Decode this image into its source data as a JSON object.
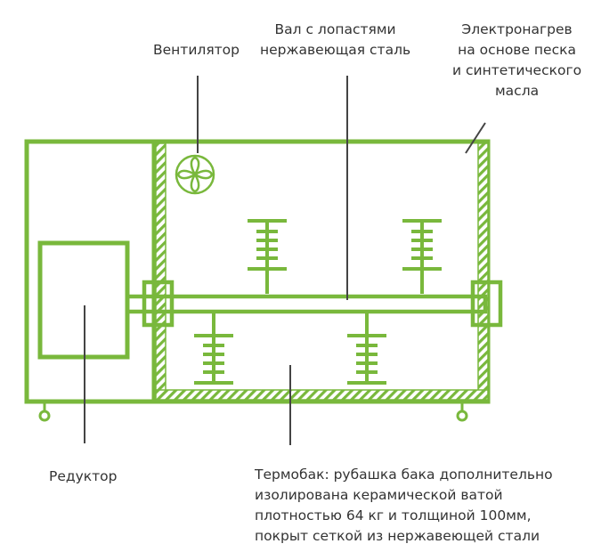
{
  "colors": {
    "frame": "#79b83c",
    "leader": "#444444",
    "text": "#333333",
    "background": "#ffffff"
  },
  "labels": {
    "fan": "Вентилятор",
    "shaft": [
      "Вал с лопастями",
      "нержавеющая сталь"
    ],
    "heater": [
      "Электронагрев",
      "на основе песка",
      "и синтетического",
      "масла"
    ],
    "reducer": "Редуктор",
    "tank": [
      "Термобак: рубашка бака дополнительно",
      "изолирована керамической ватой",
      "плотностью 64 кг и толщиной 100мм,",
      "покрыт сеткой из нержавеющей стали"
    ]
  },
  "icons": {
    "fan": "fan-icon",
    "wheel": "wheel-icon"
  }
}
